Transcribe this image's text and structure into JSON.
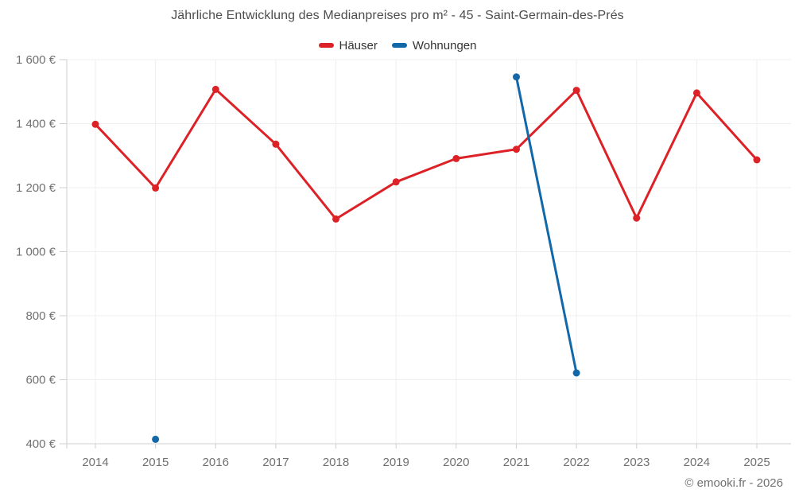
{
  "attribution": "© emooki.fr - 2026",
  "chart_data": {
    "type": "line",
    "title": "Jährliche Entwicklung des Medianpreises pro m² - 45 - Saint-Germain-des-Prés",
    "xlabel": "",
    "ylabel": "",
    "legend_position": "top",
    "grid": true,
    "x": [
      "2014",
      "2015",
      "2016",
      "2017",
      "2018",
      "2019",
      "2020",
      "2021",
      "2022",
      "2023",
      "2024",
      "2025"
    ],
    "series": [
      {
        "name": "Häuser",
        "color": "#dc2127",
        "values": [
          1398,
          1199,
          1507,
          1336,
          1102,
          1218,
          1291,
          1320,
          1504,
          1105,
          1496,
          1287
        ]
      },
      {
        "name": "Wohnungen",
        "color": "#1268a8",
        "values": [
          null,
          414,
          null,
          null,
          null,
          null,
          null,
          1546,
          621,
          null,
          null,
          null
        ]
      }
    ],
    "ylim": [
      400,
      1600
    ],
    "yticks": [
      400,
      600,
      800,
      1000,
      1200,
      1400,
      1600
    ],
    "ytick_labels": [
      "400 €",
      "600 €",
      "800 €",
      "1 000 €",
      "1 200 €",
      "1 400 €",
      "1 600 €"
    ],
    "grid_color": "#efefef",
    "axis_color": "#cfcfcf"
  }
}
